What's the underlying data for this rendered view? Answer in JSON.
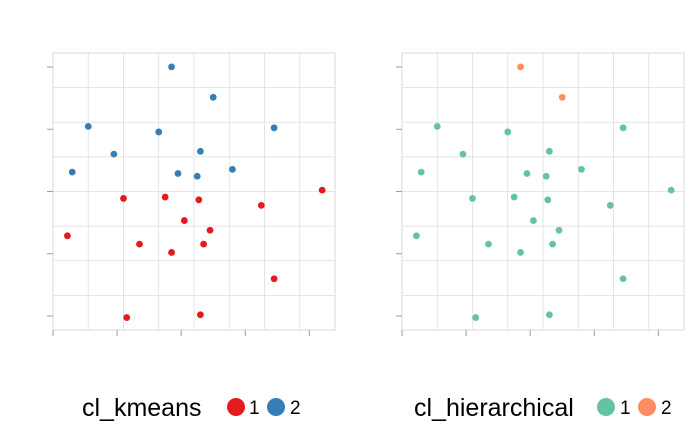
{
  "chart_data": [
    {
      "type": "scatter",
      "title": "",
      "xlabel": "",
      "ylabel": "",
      "grid": true,
      "legend_position": "bottom",
      "legend_title": "cl_kmeans",
      "categories": [
        {
          "label": "1",
          "color": "#E41A1C"
        },
        {
          "label": "2",
          "color": "#377EB8"
        }
      ],
      "points": [
        {
          "x": 3.7,
          "y": 9.5,
          "cluster": "2"
        },
        {
          "x": 5.0,
          "y": 8.4,
          "cluster": "2"
        },
        {
          "x": 1.1,
          "y": 7.35,
          "cluster": "2"
        },
        {
          "x": 3.3,
          "y": 7.15,
          "cluster": "2"
        },
        {
          "x": 6.9,
          "y": 7.3,
          "cluster": "2"
        },
        {
          "x": 1.9,
          "y": 6.35,
          "cluster": "2"
        },
        {
          "x": 4.6,
          "y": 6.45,
          "cluster": "2"
        },
        {
          "x": 0.6,
          "y": 5.7,
          "cluster": "2"
        },
        {
          "x": 3.9,
          "y": 5.65,
          "cluster": "2"
        },
        {
          "x": 4.5,
          "y": 5.55,
          "cluster": "2"
        },
        {
          "x": 5.6,
          "y": 5.8,
          "cluster": "2"
        },
        {
          "x": 2.2,
          "y": 4.75,
          "cluster": "1"
        },
        {
          "x": 3.5,
          "y": 4.8,
          "cluster": "1"
        },
        {
          "x": 4.55,
          "y": 4.7,
          "cluster": "1"
        },
        {
          "x": 6.5,
          "y": 4.5,
          "cluster": "1"
        },
        {
          "x": 8.4,
          "y": 5.05,
          "cluster": "1"
        },
        {
          "x": 4.1,
          "y": 3.95,
          "cluster": "1"
        },
        {
          "x": 4.9,
          "y": 3.6,
          "cluster": "1"
        },
        {
          "x": 0.45,
          "y": 3.4,
          "cluster": "1"
        },
        {
          "x": 2.7,
          "y": 3.1,
          "cluster": "1"
        },
        {
          "x": 4.7,
          "y": 3.1,
          "cluster": "1"
        },
        {
          "x": 3.7,
          "y": 2.8,
          "cluster": "1"
        },
        {
          "x": 6.9,
          "y": 1.85,
          "cluster": "1"
        },
        {
          "x": 2.3,
          "y": 0.45,
          "cluster": "1"
        },
        {
          "x": 4.6,
          "y": 0.55,
          "cluster": "1"
        }
      ]
    },
    {
      "type": "scatter",
      "title": "",
      "xlabel": "",
      "ylabel": "",
      "grid": true,
      "legend_position": "bottom",
      "legend_title": "cl_hierarchical",
      "categories": [
        {
          "label": "1",
          "color": "#66C2A5"
        },
        {
          "label": "2",
          "color": "#FC8D62"
        }
      ],
      "points": [
        {
          "x": 3.7,
          "y": 9.5,
          "cluster": "2"
        },
        {
          "x": 5.0,
          "y": 8.4,
          "cluster": "2"
        },
        {
          "x": 1.1,
          "y": 7.35,
          "cluster": "1"
        },
        {
          "x": 3.3,
          "y": 7.15,
          "cluster": "1"
        },
        {
          "x": 6.9,
          "y": 7.3,
          "cluster": "1"
        },
        {
          "x": 1.9,
          "y": 6.35,
          "cluster": "1"
        },
        {
          "x": 4.6,
          "y": 6.45,
          "cluster": "1"
        },
        {
          "x": 0.6,
          "y": 5.7,
          "cluster": "1"
        },
        {
          "x": 3.9,
          "y": 5.65,
          "cluster": "1"
        },
        {
          "x": 4.5,
          "y": 5.55,
          "cluster": "1"
        },
        {
          "x": 5.6,
          "y": 5.8,
          "cluster": "1"
        },
        {
          "x": 2.2,
          "y": 4.75,
          "cluster": "1"
        },
        {
          "x": 3.5,
          "y": 4.8,
          "cluster": "1"
        },
        {
          "x": 4.55,
          "y": 4.7,
          "cluster": "1"
        },
        {
          "x": 6.5,
          "y": 4.5,
          "cluster": "1"
        },
        {
          "x": 8.4,
          "y": 5.05,
          "cluster": "1"
        },
        {
          "x": 4.1,
          "y": 3.95,
          "cluster": "1"
        },
        {
          "x": 4.9,
          "y": 3.6,
          "cluster": "1"
        },
        {
          "x": 0.45,
          "y": 3.4,
          "cluster": "1"
        },
        {
          "x": 2.7,
          "y": 3.1,
          "cluster": "1"
        },
        {
          "x": 4.7,
          "y": 3.1,
          "cluster": "1"
        },
        {
          "x": 3.7,
          "y": 2.8,
          "cluster": "1"
        },
        {
          "x": 6.9,
          "y": 1.85,
          "cluster": "1"
        },
        {
          "x": 2.3,
          "y": 0.45,
          "cluster": "1"
        },
        {
          "x": 4.6,
          "y": 0.55,
          "cluster": "1"
        }
      ]
    }
  ]
}
